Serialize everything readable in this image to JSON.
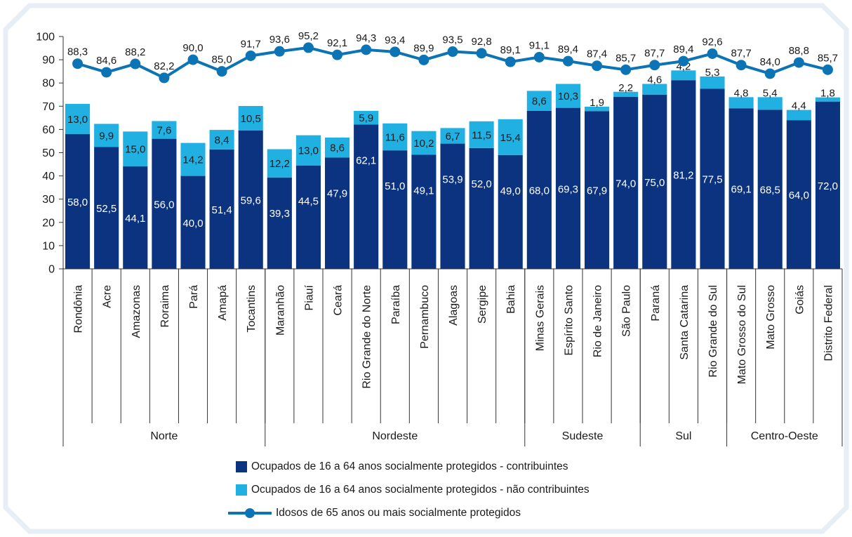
{
  "colors": {
    "contrib": "#0b3380",
    "noncontrib": "#21b0e2",
    "line": "#0c74b5",
    "frame": "#e8eef6",
    "axis": "#333333",
    "label_light": "#ffffff",
    "label_dark": "#1a1a1a"
  },
  "legend": {
    "contrib": "Ocupados de 16 a 64 anos socialmente protegidos - contribuintes",
    "noncontrib": "Ocupados de 16 a 64 anos socialmente protegidos - não contribuintes",
    "line": "Idosos de 65 anos ou mais socialmente protegidos"
  },
  "chart_data": {
    "type": "bar",
    "stacked": true,
    "ylim": [
      0,
      100
    ],
    "yticks": [
      0,
      10,
      20,
      30,
      40,
      50,
      60,
      70,
      80,
      90,
      100
    ],
    "grid": false,
    "legend_position": "bottom",
    "categories": [
      "Rondônia",
      "Acre",
      "Amazonas",
      "Roraima",
      "Pará",
      "Amapá",
      "Tocantins",
      "Maranhão",
      "Piauí",
      "Ceará",
      "Rio Grande do Norte",
      "Paraíba",
      "Pernambuco",
      "Alagoas",
      "Sergipe",
      "Bahia",
      "Minas Gerais",
      "Espírito Santo",
      "Rio de Janeiro",
      "São Paulo",
      "Paraná",
      "Santa Catarina",
      "Rio Grande do Sul",
      "Mato Grosso do Sul",
      "Mato Grosso",
      "Goiás",
      "Distrito Federal"
    ],
    "groups": [
      {
        "name": "Norte",
        "count": 7
      },
      {
        "name": "Nordeste",
        "count": 9
      },
      {
        "name": "Sudeste",
        "count": 4
      },
      {
        "name": "Sul",
        "count": 3
      },
      {
        "name": "Centro-Oeste",
        "count": 4
      }
    ],
    "series": [
      {
        "name": "Ocupados de 16 a 64 anos socialmente protegidos - contribuintes",
        "type": "bar",
        "values": [
          58.0,
          52.5,
          44.1,
          56.0,
          40.0,
          51.4,
          59.6,
          39.3,
          44.5,
          47.9,
          62.1,
          51.0,
          49.1,
          53.9,
          52.0,
          49.0,
          68.0,
          69.3,
          67.9,
          74.0,
          75.0,
          81.2,
          77.5,
          69.1,
          68.5,
          64.0,
          72.0
        ],
        "labels": [
          "58,0",
          "52,5",
          "44,1",
          "56,0",
          "40,0",
          "51,4",
          "59,6",
          "39,3",
          "44,5",
          "47,9",
          "62,1",
          "51,0",
          "49,1",
          "53,9",
          "52,0",
          "49,0",
          "68,0",
          "69,3",
          "67,9",
          "74,0",
          "75,0",
          "81,2",
          "77,5",
          "69,1",
          "68,5",
          "64,0",
          "72,0"
        ]
      },
      {
        "name": "Ocupados de 16 a 64 anos socialmente protegidos - não contribuintes",
        "type": "bar",
        "values": [
          13.0,
          9.9,
          15.0,
          7.6,
          14.2,
          8.4,
          10.5,
          12.2,
          13.0,
          8.6,
          5.9,
          11.6,
          10.2,
          6.7,
          11.5,
          15.4,
          8.6,
          10.3,
          1.9,
          2.2,
          4.6,
          4.2,
          5.3,
          4.8,
          5.4,
          4.4,
          1.8
        ],
        "labels": [
          "13,0",
          "9,9",
          "15,0",
          "7,6",
          "14,2",
          "8,4",
          "10,5",
          "12,2",
          "13,0",
          "8,6",
          "5,9",
          "11,6",
          "10,2",
          "6,7",
          "11,5",
          "15,4",
          "8,6",
          "10,3",
          "1,9",
          "2,2",
          "4,6",
          "4,2",
          "5,3",
          "4,8",
          "5,4",
          "4,4",
          "1,8"
        ]
      },
      {
        "name": "Idosos de 65 anos ou mais socialmente protegidos",
        "type": "line",
        "values": [
          88.3,
          84.6,
          88.2,
          82.2,
          90.0,
          85.0,
          91.7,
          93.6,
          95.2,
          92.1,
          94.3,
          93.4,
          89.9,
          93.5,
          92.8,
          89.1,
          91.1,
          89.4,
          87.4,
          85.7,
          87.7,
          89.4,
          92.6,
          87.7,
          84.0,
          88.8,
          85.7
        ],
        "labels": [
          "88,3",
          "84,6",
          "88,2",
          "82,2",
          "90,0",
          "85,0",
          "91,7",
          "93,6",
          "95,2",
          "92,1",
          "94,3",
          "93,4",
          "89,9",
          "93,5",
          "92,8",
          "89,1",
          "91,1",
          "89,4",
          "87,4",
          "85,7",
          "87,7",
          "89,4",
          "92,6",
          "87,7",
          "84,0",
          "88,8",
          "85,7"
        ]
      }
    ]
  }
}
